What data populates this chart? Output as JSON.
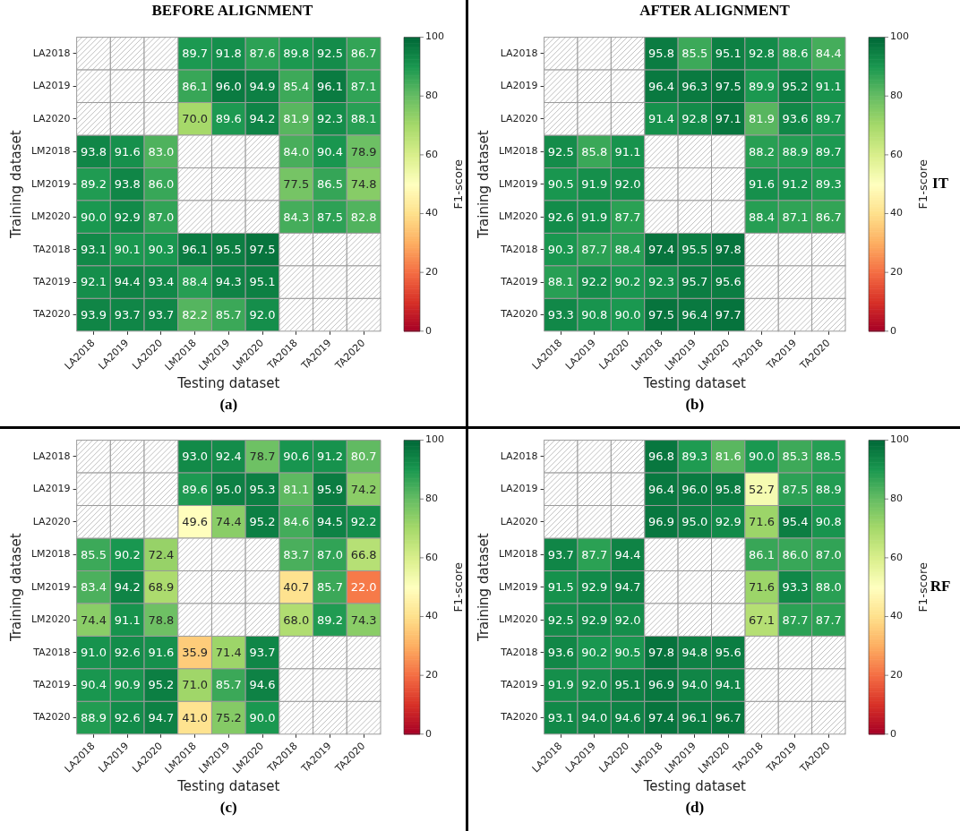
{
  "chart_data": [
    {
      "type": "heatmap",
      "title": "BEFORE ALIGNMENT",
      "xlabel": "Testing dataset",
      "ylabel": "Training dataset",
      "clabel": "F1-score",
      "clim": [
        0,
        100
      ],
      "cticks": [
        0,
        20,
        40,
        60,
        80,
        100
      ],
      "data_labels": true,
      "annotations": [
        "(a)"
      ],
      "categories": [
        "LA2018",
        "LA2019",
        "LA2020",
        "LM2018",
        "LM2019",
        "LM2020",
        "TA2018",
        "TA2019",
        "TA2020"
      ],
      "y_categories": [
        "LA2018",
        "LA2019",
        "LA2020",
        "LM2018",
        "LM2019",
        "LM2020",
        "TA2018",
        "TA2019",
        "TA2020"
      ],
      "cells": [
        [
          null,
          null,
          null,
          89.7,
          91.8,
          87.6,
          89.8,
          92.5,
          86.7
        ],
        [
          null,
          null,
          null,
          86.1,
          96.0,
          94.9,
          85.4,
          96.1,
          87.1
        ],
        [
          null,
          null,
          null,
          70.0,
          89.6,
          94.2,
          81.9,
          92.3,
          88.1
        ],
        [
          93.8,
          91.6,
          83.0,
          null,
          null,
          null,
          84.0,
          90.4,
          78.9
        ],
        [
          89.2,
          93.8,
          86.0,
          null,
          null,
          null,
          77.5,
          86.5,
          74.8
        ],
        [
          90.0,
          92.9,
          87.0,
          null,
          null,
          null,
          84.3,
          87.5,
          82.8
        ],
        [
          93.1,
          90.1,
          90.3,
          96.1,
          95.5,
          97.5,
          null,
          null,
          null
        ],
        [
          92.1,
          94.4,
          93.4,
          88.4,
          94.3,
          95.1,
          null,
          null,
          null
        ],
        [
          93.9,
          93.7,
          93.7,
          82.2,
          85.7,
          92.0,
          null,
          null,
          null
        ]
      ],
      "cell_labels": [
        [
          null,
          null,
          null,
          "89.7",
          "91.8",
          "87.6",
          "89.8",
          "92.5",
          "86.7"
        ],
        [
          null,
          null,
          null,
          "86.1",
          "96.0",
          "94.9",
          "85.4",
          "96.1",
          "87.1"
        ],
        [
          null,
          null,
          null,
          "70.0",
          "89.6",
          "94.2",
          "81.9",
          "92.3",
          "88.1"
        ],
        [
          "93.8",
          "91.6",
          "83.0",
          null,
          null,
          null,
          "84.0",
          "90.4",
          "78.9"
        ],
        [
          "89.2",
          "93.8",
          "86.0",
          null,
          null,
          null,
          "77.5",
          "86.5",
          "74.8"
        ],
        [
          "90.0",
          "92.9",
          "87.0",
          null,
          null,
          null,
          "84.3",
          "87.5",
          "82.8"
        ],
        [
          "93.1",
          "90.1",
          "90.3",
          "96.1",
          "95.5",
          "97.5",
          null,
          null,
          null
        ],
        [
          "92.1",
          "94.4",
          "93.4",
          "88.4",
          "94.3",
          "95.1",
          null,
          null,
          null
        ],
        [
          "93.9",
          "93.7",
          "93.7",
          "82.2",
          "85.7",
          "92.0",
          null,
          null,
          null
        ]
      ]
    },
    {
      "type": "heatmap",
      "title": "AFTER ALIGNMENT",
      "xlabel": "Testing dataset",
      "ylabel": "Training dataset",
      "clabel": "F1-score",
      "clim": [
        0,
        100
      ],
      "cticks": [
        0,
        20,
        40,
        60,
        80,
        100
      ],
      "data_labels": true,
      "annotations": [
        "(b)",
        "IT"
      ],
      "categories": [
        "LA2018",
        "LA2019",
        "LA2020",
        "LM2018",
        "LM2019",
        "LM2020",
        "TA2018",
        "TA2019",
        "TA2020"
      ],
      "y_categories": [
        "LA2018",
        "LA2019",
        "LA2020",
        "LM2018",
        "LM2019",
        "LM2020",
        "TA2018",
        "TA2019",
        "TA2020"
      ],
      "cells": [
        [
          null,
          null,
          null,
          95.8,
          85.5,
          95.1,
          92.8,
          88.6,
          84.4
        ],
        [
          null,
          null,
          null,
          96.4,
          96.3,
          97.5,
          89.9,
          95.2,
          91.1
        ],
        [
          null,
          null,
          null,
          91.4,
          92.8,
          97.1,
          81.9,
          93.6,
          89.7
        ],
        [
          92.5,
          85.8,
          91.1,
          null,
          null,
          null,
          88.2,
          88.9,
          89.7
        ],
        [
          90.5,
          91.9,
          92.0,
          null,
          null,
          null,
          91.6,
          91.2,
          89.3
        ],
        [
          92.6,
          91.9,
          87.7,
          null,
          null,
          null,
          88.4,
          87.1,
          86.7
        ],
        [
          90.3,
          87.7,
          88.4,
          97.4,
          95.5,
          97.8,
          null,
          null,
          null
        ],
        [
          88.1,
          92.2,
          90.2,
          92.3,
          95.7,
          95.6,
          null,
          null,
          null
        ],
        [
          93.3,
          90.8,
          90.0,
          97.5,
          96.4,
          97.7,
          null,
          null,
          null
        ]
      ],
      "cell_labels": [
        [
          null,
          null,
          null,
          "95.8",
          "85.5",
          "95.1",
          "92.8",
          "88.6",
          "84.4"
        ],
        [
          null,
          null,
          null,
          "96.4",
          "96.3",
          "97.5",
          "89.9",
          "95.2",
          "91.1"
        ],
        [
          null,
          null,
          null,
          "91.4",
          "92.8",
          "97.1",
          "81.9",
          "93.6",
          "89.7"
        ],
        [
          "92.5",
          "85.8",
          "91.1",
          null,
          null,
          null,
          "88.2",
          "88.9",
          "89.7"
        ],
        [
          "90.5",
          "91.9",
          "92.0",
          null,
          null,
          null,
          "91.6",
          "91.2",
          "89.3"
        ],
        [
          "92.6",
          "91.9",
          "87.7",
          null,
          null,
          null,
          "88.4",
          "87.1",
          "86.7"
        ],
        [
          "90.3",
          "87.7",
          "88.4",
          "97.4",
          "95.5",
          "97.8",
          null,
          null,
          null
        ],
        [
          "88.1",
          "92.2",
          "90.2",
          "92.3",
          "95.7",
          "95.6",
          null,
          null,
          null
        ],
        [
          "93.3",
          "90.8",
          "90.0",
          "97.5",
          "96.4",
          "97.7",
          null,
          null,
          null
        ]
      ]
    },
    {
      "type": "heatmap",
      "xlabel": "Testing dataset",
      "ylabel": "Training dataset",
      "clabel": "F1-score",
      "clim": [
        0,
        100
      ],
      "cticks": [
        0,
        20,
        40,
        60,
        80,
        100
      ],
      "data_labels": true,
      "annotations": [
        "(c)"
      ],
      "categories": [
        "LA2018",
        "LA2019",
        "LA2020",
        "LM2018",
        "LM2019",
        "LM2020",
        "TA2018",
        "TA2019",
        "TA2020"
      ],
      "y_categories": [
        "LA2018",
        "LA2019",
        "LA2020",
        "LM2018",
        "LM2019",
        "LM2020",
        "TA2018",
        "TA2019",
        "TA2020"
      ],
      "cells": [
        [
          null,
          null,
          null,
          93.0,
          92.4,
          78.7,
          90.6,
          91.2,
          80.7
        ],
        [
          null,
          null,
          null,
          89.6,
          95.0,
          95.3,
          81.1,
          95.9,
          74.2
        ],
        [
          null,
          null,
          null,
          49.6,
          74.4,
          95.2,
          84.6,
          94.5,
          92.2
        ],
        [
          85.5,
          90.2,
          72.4,
          null,
          null,
          null,
          83.7,
          87.0,
          66.8
        ],
        [
          83.4,
          94.2,
          68.9,
          null,
          null,
          null,
          40.7,
          85.7,
          22.0
        ],
        [
          74.4,
          91.1,
          78.8,
          null,
          null,
          null,
          68.0,
          89.2,
          74.3
        ],
        [
          91.0,
          92.6,
          91.6,
          35.9,
          71.4,
          93.7,
          null,
          null,
          null
        ],
        [
          90.4,
          90.9,
          95.2,
          71.0,
          85.7,
          94.6,
          null,
          null,
          null
        ],
        [
          88.9,
          92.6,
          94.7,
          41.0,
          75.2,
          90.0,
          null,
          null,
          null
        ]
      ],
      "cell_labels": [
        [
          null,
          null,
          null,
          "93.0",
          "92.4",
          "78.7",
          "90.6",
          "91.2",
          "80.7"
        ],
        [
          null,
          null,
          null,
          "89.6",
          "95.0",
          "95.3",
          "81.1",
          "95.9",
          "74.2"
        ],
        [
          null,
          null,
          null,
          "49.6",
          "74.4",
          "95.2",
          "84.6",
          "94.5",
          "92.2"
        ],
        [
          "85.5",
          "90.2",
          "72.4",
          null,
          null,
          null,
          "83.7",
          "87.0",
          "66.8"
        ],
        [
          "83.4",
          "94.2",
          "68.9",
          null,
          null,
          null,
          "40.7",
          "85.7",
          "22.0"
        ],
        [
          "74.4",
          "91.1",
          "78.8",
          null,
          null,
          null,
          "68.0",
          "89.2",
          "74.3"
        ],
        [
          "91.0",
          "92.6",
          "91.6",
          "35.9",
          "71.4",
          "93.7",
          null,
          null,
          null
        ],
        [
          "90.4",
          "90.9",
          "95.2",
          "71.0",
          "85.7",
          "94.6",
          null,
          null,
          null
        ],
        [
          "88.9",
          "92.6",
          "94.7",
          "41.0",
          "75.2",
          "90.0",
          null,
          null,
          null
        ]
      ]
    },
    {
      "type": "heatmap",
      "xlabel": "Testing dataset",
      "ylabel": "Training dataset",
      "clabel": "F1-score",
      "clim": [
        0,
        100
      ],
      "cticks": [
        0,
        20,
        40,
        60,
        80,
        100
      ],
      "data_labels": true,
      "annotations": [
        "(d)",
        "RF"
      ],
      "categories": [
        "LA2018",
        "LA2019",
        "LA2020",
        "LM2018",
        "LM2019",
        "LM2020",
        "TA2018",
        "TA2019",
        "TA2020"
      ],
      "y_categories": [
        "LA2018",
        "LA2019",
        "LA2020",
        "LM2018",
        "LM2019",
        "LM2020",
        "TA2018",
        "TA2019",
        "TA2020"
      ],
      "cells": [
        [
          null,
          null,
          null,
          96.8,
          89.3,
          81.6,
          90.0,
          85.3,
          88.5
        ],
        [
          null,
          null,
          null,
          96.4,
          96.0,
          95.8,
          52.7,
          87.5,
          88.9
        ],
        [
          null,
          null,
          null,
          96.9,
          95.0,
          92.9,
          71.6,
          95.4,
          90.8
        ],
        [
          93.7,
          87.7,
          94.4,
          null,
          null,
          null,
          86.1,
          86.0,
          87.0
        ],
        [
          91.5,
          92.9,
          94.7,
          null,
          null,
          null,
          71.6,
          93.3,
          88.0
        ],
        [
          92.5,
          92.9,
          92.0,
          null,
          null,
          null,
          67.1,
          87.7,
          87.7
        ],
        [
          93.6,
          90.2,
          90.5,
          97.8,
          94.8,
          95.6,
          null,
          null,
          null
        ],
        [
          91.9,
          92.0,
          95.1,
          96.9,
          94.0,
          94.1,
          null,
          null,
          null
        ],
        [
          93.1,
          94.0,
          94.6,
          97.4,
          96.1,
          96.7,
          null,
          null,
          null
        ]
      ],
      "cell_labels": [
        [
          null,
          null,
          null,
          "96.8",
          "89.3",
          "81.6",
          "90.0",
          "85.3",
          "88.5"
        ],
        [
          null,
          null,
          null,
          "96.4",
          "96.0",
          "95.8",
          "52.7",
          "87.5",
          "88.9"
        ],
        [
          null,
          null,
          null,
          "96.9",
          "95.0",
          "92.9",
          "71.6",
          "95.4",
          "90.8"
        ],
        [
          "93.7",
          "87.7",
          "94.4",
          null,
          null,
          null,
          "86.1",
          "86.0",
          "87.0"
        ],
        [
          "91.5",
          "92.9",
          "94.7",
          null,
          null,
          null,
          "71.6",
          "93.3",
          "88.0"
        ],
        [
          "92.5",
          "92.9",
          "92.0",
          null,
          null,
          null,
          "67.1",
          "87.7",
          "87.7"
        ],
        [
          "93.6",
          "90.2",
          "90.5",
          "97.8",
          "94.8",
          "95.6",
          null,
          null,
          null
        ],
        [
          "91.9",
          "92.0",
          "95.1",
          "96.9",
          "94.0",
          "94.1",
          null,
          null,
          null
        ],
        [
          "93.1",
          "94.0",
          "94.6",
          "97.4",
          "96.1",
          "96.7",
          null,
          null,
          null
        ]
      ]
    }
  ]
}
